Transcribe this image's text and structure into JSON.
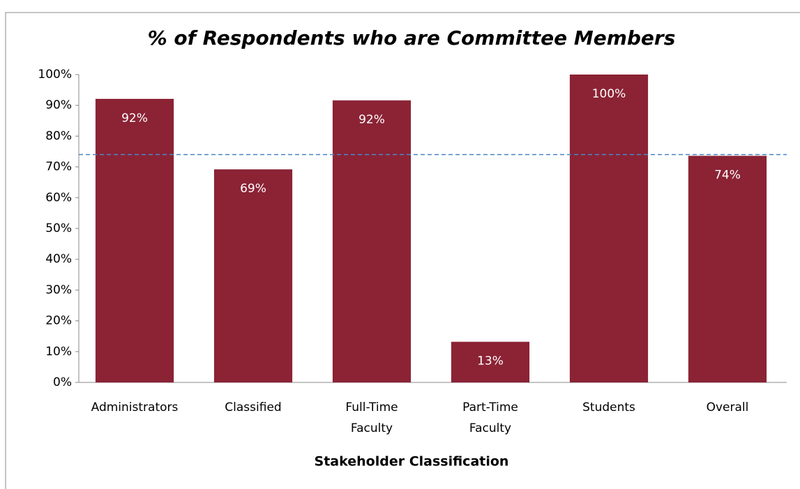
{
  "chart_data": {
    "type": "bar",
    "title": "% of Respondents who are Committee Members",
    "x_label": "Stakeholder Classification",
    "categories": [
      "Administrators",
      "Classified",
      "Full-Time Faculty",
      "Part-Time Faculty",
      "Students",
      "Overall"
    ],
    "values": [
      92.1,
      69.2,
      91.6,
      13.2,
      100,
      73.6
    ],
    "value_labels": [
      "92%",
      "69%",
      "92%",
      "13%",
      "100%",
      "74%"
    ],
    "color": "#8b2335",
    "reference_line": {
      "value": 74,
      "color": "#4a86c8",
      "style": "dashed"
    },
    "ylim": [
      0,
      100
    ],
    "yticks": [
      {
        "value": 0,
        "label": "0%"
      },
      {
        "value": 10,
        "label": "10%"
      },
      {
        "value": 20,
        "label": "20%"
      },
      {
        "value": 30,
        "label": "30%"
      },
      {
        "value": 40,
        "label": "40%"
      },
      {
        "value": 50,
        "label": "50%"
      },
      {
        "value": 60,
        "label": "60%"
      },
      {
        "value": 70,
        "label": "70%"
      },
      {
        "value": 80,
        "label": "80%"
      },
      {
        "value": 90,
        "label": "90%"
      },
      {
        "value": 100,
        "label": "100%"
      }
    ],
    "grid": false
  }
}
